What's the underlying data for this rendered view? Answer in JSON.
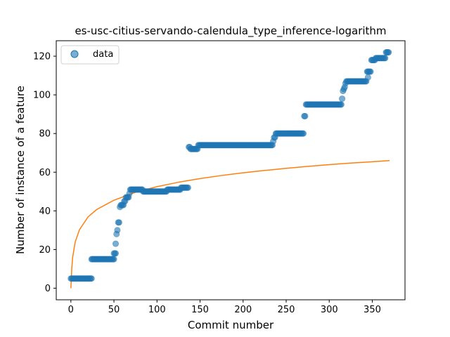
{
  "chart_data": {
    "type": "scatter",
    "title": "es-usc-citius-servando-calendula_type_inference-logarithm",
    "xlabel": "Commit number",
    "ylabel": "Number of instance of a feature",
    "xlim": [
      -17,
      388
    ],
    "ylim": [
      -6,
      128
    ],
    "xticks": [
      0,
      50,
      100,
      150,
      200,
      250,
      300,
      350
    ],
    "yticks": [
      0,
      20,
      40,
      60,
      80,
      100,
      120
    ],
    "grid": false,
    "legend": {
      "placement": "top-left",
      "entries": [
        "data"
      ]
    },
    "colors": {
      "data": "#1f77b4",
      "fit": "#ff7f0e"
    },
    "series": [
      {
        "name": "data",
        "kind": "scatter",
        "segments": [
          {
            "x_start": 0,
            "x_end": 24,
            "step": 1,
            "y": 5
          },
          {
            "x_start": 24,
            "x_end": 50,
            "step": 1,
            "y": 15
          },
          {
            "x_start": 50,
            "x_end": 52,
            "step": 1,
            "y": 18
          },
          {
            "x_start": 69,
            "x_end": 83,
            "step": 1,
            "y": 51
          },
          {
            "x_start": 84,
            "x_end": 111,
            "step": 1,
            "y": 50
          },
          {
            "x_start": 112,
            "x_end": 127,
            "step": 1,
            "y": 51
          },
          {
            "x_start": 128,
            "x_end": 136,
            "step": 1,
            "y": 52
          },
          {
            "x_start": 140,
            "x_end": 147,
            "step": 1,
            "y": 72
          },
          {
            "x_start": 148,
            "x_end": 234,
            "step": 1,
            "y": 74
          },
          {
            "x_start": 239,
            "x_end": 270,
            "step": 1,
            "y": 80
          },
          {
            "x_start": 273,
            "x_end": 314,
            "step": 1,
            "y": 95
          },
          {
            "x_start": 320,
            "x_end": 343,
            "step": 1,
            "y": 107
          },
          {
            "x_start": 344,
            "x_end": 348,
            "step": 1,
            "y": 112
          },
          {
            "x_start": 349,
            "x_end": 353,
            "step": 1,
            "y": 118
          },
          {
            "x_start": 354,
            "x_end": 365,
            "step": 1,
            "y": 119
          },
          {
            "x_start": 366,
            "x_end": 369,
            "step": 1,
            "y": 122
          }
        ],
        "points": [
          [
            52,
            23
          ],
          [
            53,
            28
          ],
          [
            54,
            30
          ],
          [
            55,
            34
          ],
          [
            56,
            34
          ],
          [
            57,
            42
          ],
          [
            58,
            43
          ],
          [
            59,
            43
          ],
          [
            60,
            43
          ],
          [
            61,
            43
          ],
          [
            62,
            45
          ],
          [
            63,
            45
          ],
          [
            64,
            47
          ],
          [
            65,
            47
          ],
          [
            66,
            47
          ],
          [
            67,
            47
          ],
          [
            68,
            49
          ],
          [
            137,
            73
          ],
          [
            138,
            73
          ],
          [
            139,
            72
          ],
          [
            235,
            76
          ],
          [
            236,
            78
          ],
          [
            237,
            78
          ],
          [
            238,
            80
          ],
          [
            271,
            89
          ],
          [
            272,
            89
          ],
          [
            315,
            98
          ],
          [
            316,
            102
          ],
          [
            317,
            103
          ],
          [
            318,
            104
          ],
          [
            319,
            106
          ],
          [
            345,
            109
          ]
        ]
      },
      {
        "name": "",
        "kind": "line",
        "model": "logarithmic",
        "x": [
          0,
          1,
          2,
          5,
          10,
          20,
          30,
          50,
          75,
          100,
          125,
          150,
          175,
          200,
          225,
          250,
          275,
          300,
          325,
          350,
          370
        ],
        "y": [
          0.0,
          10.0,
          15.8,
          23.9,
          30.3,
          36.9,
          40.7,
          45.5,
          49.6,
          52.5,
          54.8,
          56.7,
          58.3,
          59.7,
          60.9,
          62.0,
          63.0,
          63.9,
          64.7,
          65.4,
          66.0
        ]
      }
    ]
  }
}
